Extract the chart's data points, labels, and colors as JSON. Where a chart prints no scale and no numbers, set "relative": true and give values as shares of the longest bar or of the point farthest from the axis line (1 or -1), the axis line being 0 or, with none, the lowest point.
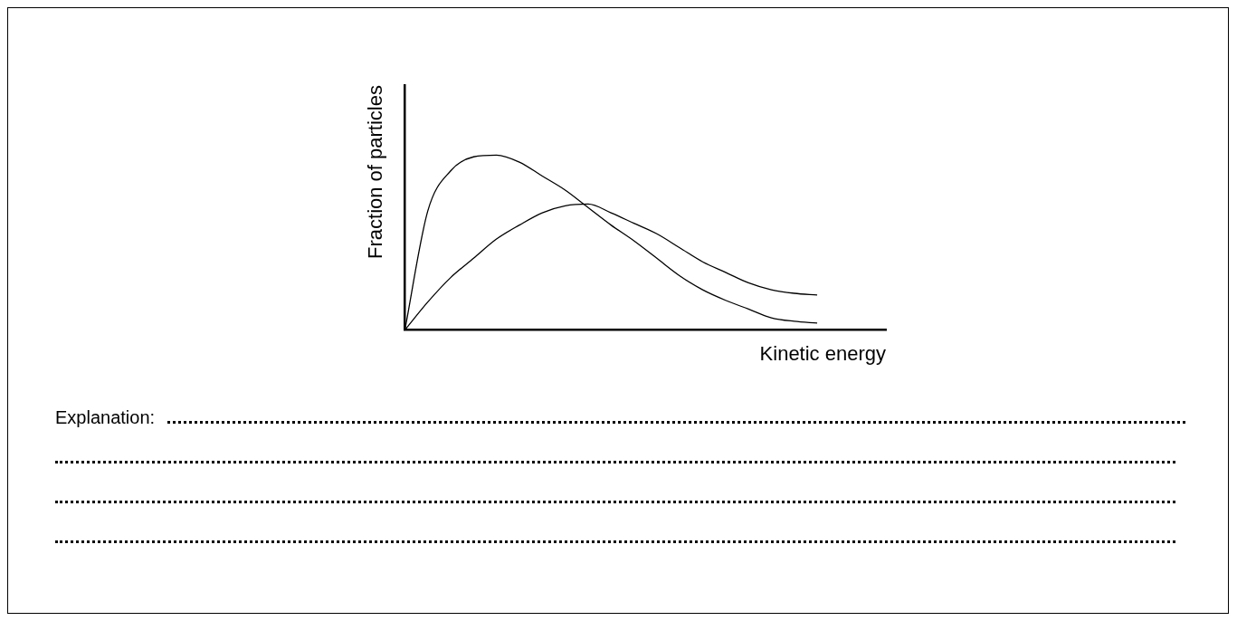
{
  "chart_data": {
    "type": "line",
    "relative": true,
    "xlabel": "Kinetic energy",
    "ylabel": "Fraction of particles",
    "categories": [
      null,
      null,
      null,
      null,
      null,
      null,
      null,
      null,
      null,
      null,
      null,
      null,
      null,
      null,
      null,
      null,
      null,
      null,
      null,
      null,
      null,
      null
    ],
    "series": [
      {
        "color": "#000000",
        "values": [
          0,
          0.68,
          0.91,
          0.99,
          1.0,
          0.96,
          0.88,
          0.8,
          0.7,
          0.6,
          0.51,
          0.41,
          0.31,
          0.23,
          0.17,
          0.12,
          0.07,
          0.05,
          0.04,
          null,
          null,
          null
        ]
      },
      {
        "color": "#000000",
        "values": [
          0,
          0.16,
          0.3,
          0.41,
          0.52,
          0.6,
          0.67,
          0.71,
          0.72,
          0.67,
          0.61,
          0.55,
          0.47,
          0.39,
          0.33,
          0.27,
          0.23,
          0.21,
          0.2,
          null,
          null,
          null
        ]
      }
    ],
    "grid": false,
    "legend": false,
    "marker": "none",
    "line_style": "solid",
    "annotations": [
      "Explanation:"
    ]
  }
}
